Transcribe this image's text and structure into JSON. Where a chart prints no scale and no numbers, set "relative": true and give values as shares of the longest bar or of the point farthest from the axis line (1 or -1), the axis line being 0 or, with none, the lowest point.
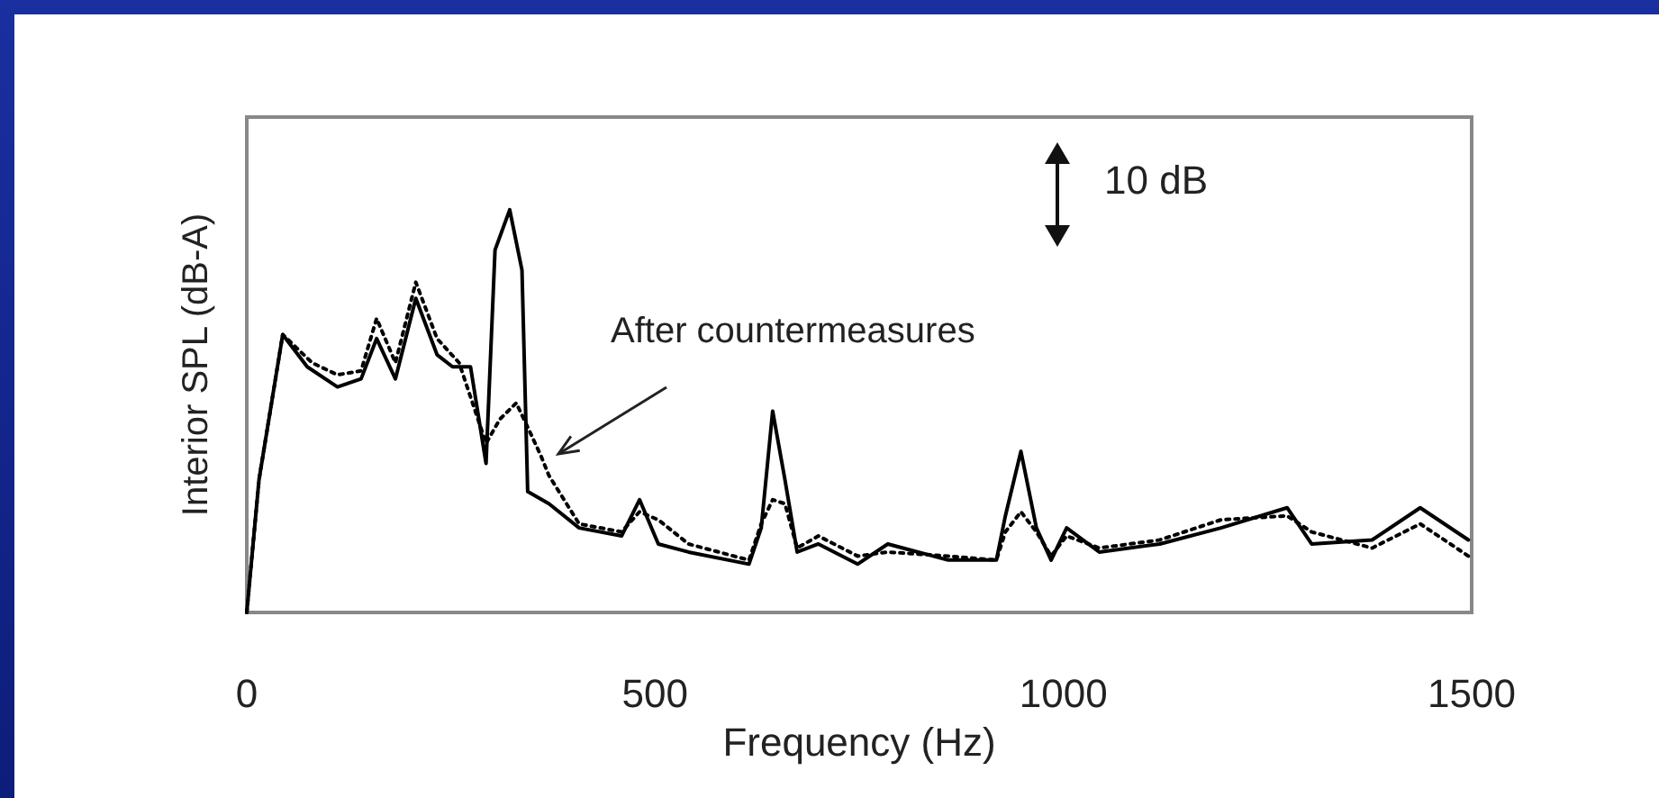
{
  "chart_data": {
    "type": "line",
    "relative": true,
    "xlabel": "Frequency (Hz)",
    "ylabel": "Interior SPL (dB-A)",
    "xlim": [
      0,
      1500
    ],
    "xticks": [
      0,
      500,
      1000,
      1500
    ],
    "grid": false,
    "marker": "none",
    "annotations": [
      "After countermeasures",
      "10 dB"
    ],
    "series": [
      {
        "color": "#000000",
        "line_style": "solid",
        "x": [
          0,
          15,
          44,
          74,
          111,
          140,
          159,
          182,
          207,
          233,
          252,
          274,
          293,
          304,
          322,
          337,
          344,
          370,
          407,
          459,
          481,
          504,
          541,
          615,
          630,
          644,
          659,
          674,
          700,
          748,
          785,
          859,
          918,
          929,
          948,
          967,
          985,
          1004,
          1044,
          1118,
          1193,
          1274,
          1304,
          1378,
          1437,
          1496
        ],
        "values": [
          0,
          0.33,
          0.69,
          0.61,
          0.56,
          0.58,
          0.68,
          0.58,
          0.78,
          0.64,
          0.61,
          0.61,
          0.37,
          0.9,
          1.0,
          0.85,
          0.3,
          0.27,
          0.21,
          0.19,
          0.28,
          0.17,
          0.15,
          0.12,
          0.21,
          0.5,
          0.33,
          0.15,
          0.17,
          0.12,
          0.17,
          0.13,
          0.13,
          0.24,
          0.4,
          0.21,
          0.13,
          0.21,
          0.15,
          0.17,
          0.21,
          0.26,
          0.17,
          0.18,
          0.26,
          0.18
        ]
      },
      {
        "color": "#000000",
        "line_style": "dotted",
        "x": [
          0,
          15,
          44,
          80,
          111,
          140,
          159,
          182,
          207,
          233,
          260,
          293,
          310,
          330,
          344,
          360,
          370,
          407,
          459,
          481,
          504,
          541,
          615,
          630,
          644,
          659,
          674,
          700,
          748,
          785,
          859,
          918,
          929,
          948,
          967,
          985,
          1004,
          1044,
          1118,
          1193,
          1274,
          1304,
          1378,
          1437,
          1496
        ],
        "values": [
          0,
          0.33,
          0.69,
          0.62,
          0.59,
          0.6,
          0.73,
          0.62,
          0.82,
          0.68,
          0.62,
          0.42,
          0.48,
          0.52,
          0.46,
          0.39,
          0.34,
          0.22,
          0.2,
          0.25,
          0.23,
          0.17,
          0.13,
          0.22,
          0.28,
          0.27,
          0.16,
          0.19,
          0.14,
          0.15,
          0.14,
          0.13,
          0.2,
          0.25,
          0.2,
          0.14,
          0.19,
          0.16,
          0.18,
          0.23,
          0.24,
          0.2,
          0.16,
          0.22,
          0.14
        ]
      }
    ]
  }
}
